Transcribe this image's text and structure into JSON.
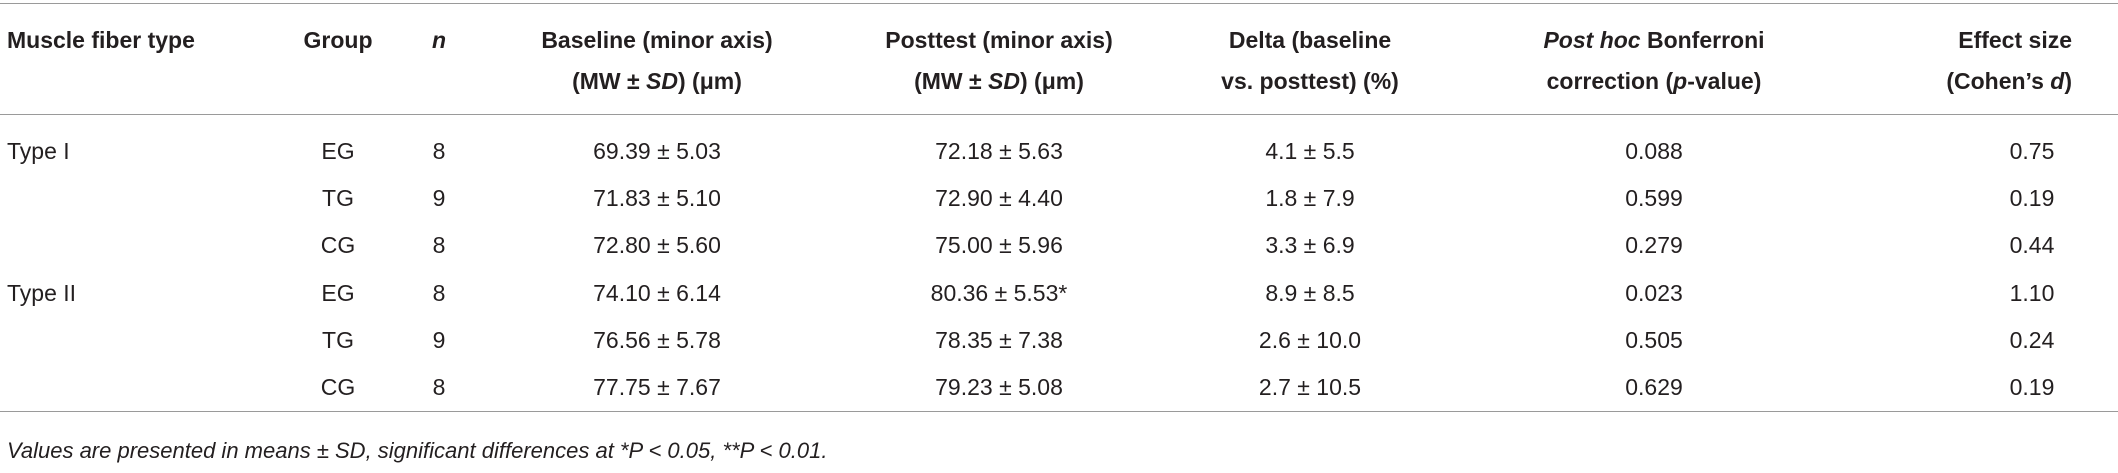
{
  "table": {
    "header": [
      [
        [
          "Muscle fiber type"
        ]
      ],
      [
        [
          "Group"
        ]
      ],
      [
        [
          {
            "text": "n",
            "italic": true
          }
        ]
      ],
      [
        [
          "Baseline (minor axis)"
        ],
        [
          "(MW ± ",
          {
            "text": "SD",
            "italic": true
          },
          ") (μm)"
        ]
      ],
      [
        [
          "Posttest (minor axis)"
        ],
        [
          "(MW ± ",
          {
            "text": "SD",
            "italic": true
          },
          ") (μm)"
        ]
      ],
      [
        [
          "Delta (baseline"
        ],
        [
          "vs. posttest) (%)"
        ]
      ],
      [
        [
          {
            "text": "Post hoc",
            "italic": true
          },
          " Bonferroni"
        ],
        [
          "correction (",
          {
            "text": "p",
            "italic": true
          },
          "-value)"
        ]
      ],
      [
        [
          "Effect size"
        ],
        [
          "(Cohen’s ",
          {
            "text": "d",
            "italic": true
          },
          ")"
        ]
      ]
    ],
    "groups": [
      {
        "fiber_type": "Type I",
        "rows": [
          [
            "EG",
            "8",
            "69.39 ± 5.03",
            "72.18 ± 5.63",
            "4.1 ± 5.5",
            "0.088",
            "0.75"
          ],
          [
            "TG",
            "9",
            "71.83 ± 5.10",
            "72.90 ± 4.40",
            "1.8 ± 7.9",
            "0.599",
            "0.19"
          ],
          [
            "CG",
            "8",
            "72.80 ± 5.60",
            "75.00 ± 5.96",
            "3.3 ± 6.9",
            "0.279",
            "0.44"
          ]
        ]
      },
      {
        "fiber_type": "Type II",
        "rows": [
          [
            "EG",
            "8",
            "74.10 ± 6.14",
            "80.36 ± 5.53*",
            "8.9 ± 8.5",
            "0.023",
            "1.10"
          ],
          [
            "TG",
            "9",
            "76.56 ± 5.78",
            "78.35 ± 7.38",
            "2.6 ± 10.0",
            "0.505",
            "0.24"
          ],
          [
            "CG",
            "8",
            "77.75 ± 7.67",
            "79.23 ± 5.08",
            "2.7 ± 10.5",
            "0.629",
            "0.19"
          ]
        ]
      }
    ],
    "footnote": "Values are presented in means ± SD, significant differences at *P < 0.05, **P < 0.01."
  }
}
